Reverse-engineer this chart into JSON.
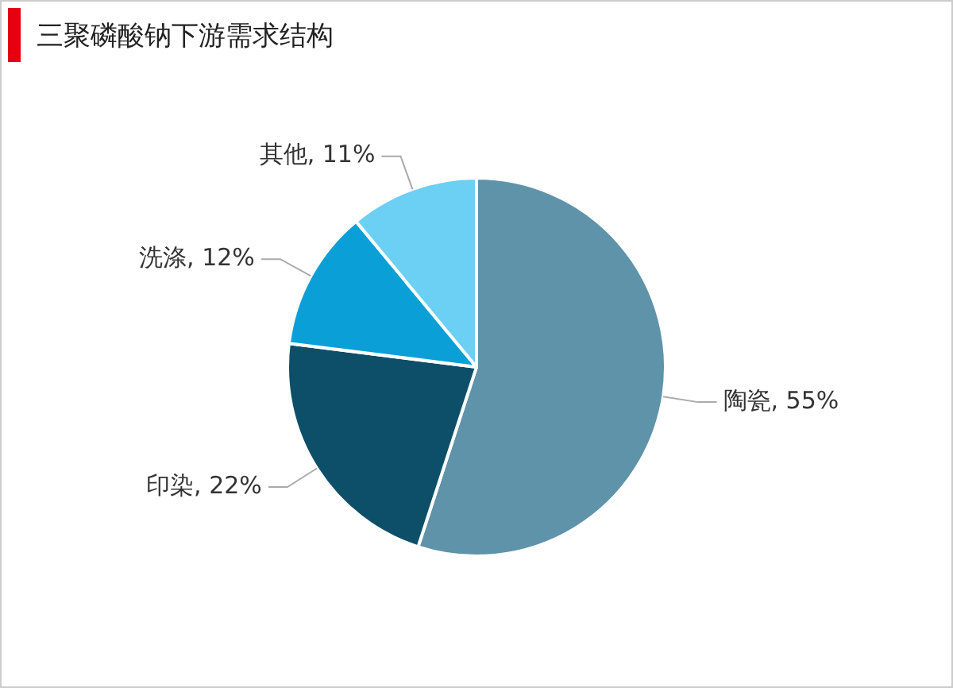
{
  "chart_data": {
    "type": "pie",
    "title": "三聚磷酸钠下游需求结构",
    "categories": [
      "陶瓷",
      "印染",
      "洗涤",
      "其他"
    ],
    "values": [
      55,
      22,
      12,
      11
    ],
    "value_labels": [
      "55%",
      "22%",
      "12%",
      "11%"
    ],
    "colors": [
      "#5f93aa",
      "#0d4f69",
      "#0a9fd6",
      "#6ccff4"
    ],
    "legend": false
  }
}
